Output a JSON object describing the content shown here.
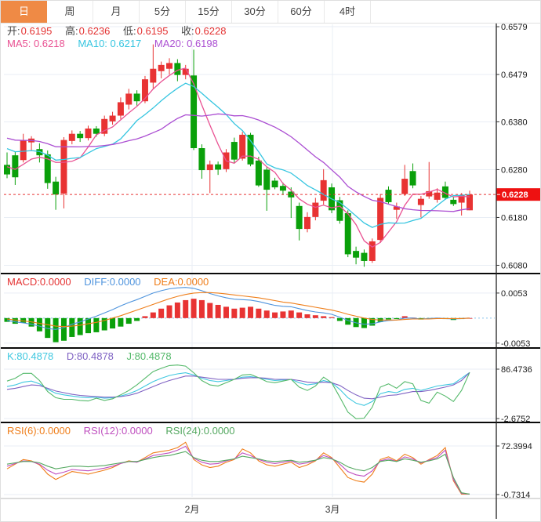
{
  "tabs": {
    "items": [
      {
        "label": "日",
        "active": true
      },
      {
        "label": "周",
        "active": false
      },
      {
        "label": "月",
        "active": false
      },
      {
        "label": "5分",
        "active": false
      },
      {
        "label": "15分",
        "active": false
      },
      {
        "label": "30分",
        "active": false
      },
      {
        "label": "60分",
        "active": false
      },
      {
        "label": "4时",
        "active": false
      }
    ]
  },
  "legends": {
    "ohlc": {
      "open_label": "开:",
      "open": "0.6195",
      "high_label": "高:",
      "high": "0.6236",
      "low_label": "低:",
      "low": "0.6195",
      "close_label": "收:",
      "close": "0.6228"
    },
    "ma": {
      "ma5": "MA5: 0.6218",
      "ma10": "MA10: 0.6217",
      "ma20": "MA20: 0.6198"
    },
    "macd": {
      "macd": "MACD:0.0000",
      "diff": "DIFF:0.0000",
      "dea": "DEA:0.0000"
    },
    "kdj": {
      "k": "K:80.4878",
      "d": "D:80.4878",
      "j": "J:80.4878"
    },
    "rsi": {
      "rsi6": "RSI(6):0.0000",
      "rsi12": "RSI(12):0.0000",
      "rsi24": "RSI(24):0.0000"
    }
  },
  "colors": {
    "accent_tab": "#ef8a45",
    "up": "#e83333",
    "down": "#0aa00a",
    "red_text": "#e43333",
    "ma5": "#e95192",
    "ma10": "#35c5e0",
    "ma20": "#ab4ed2",
    "diff": "#4f94dd",
    "dea": "#ef7e1a",
    "k": "#40c8e0",
    "d": "#7f62c3",
    "j": "#54b96a",
    "rsi6": "#ef7e1a",
    "rsi12": "#bf4fbf",
    "rsi24": "#54a860",
    "price_line": "#e83333",
    "tag": "#ee1111",
    "grid": "#e9eef5",
    "zero_dotted": "#86c3ec",
    "axis_text": "#1a1a1a",
    "separator": "#0a0a0a"
  },
  "chart_data": [
    {
      "type": "candlestick",
      "panel": "price",
      "ylim": [
        0.6066,
        0.6584
      ],
      "yticks": [
        {
          "v": 0.6579,
          "label": "0.6579"
        },
        {
          "v": 0.6479,
          "label": "0.6479"
        },
        {
          "v": 0.638,
          "label": "0.6380"
        },
        {
          "v": 0.628,
          "label": "0.6280"
        },
        {
          "v": 0.618,
          "label": "0.6180"
        },
        {
          "v": 0.608,
          "label": "0.6080"
        }
      ],
      "last_price": {
        "v": 0.6228,
        "label": "0.6228"
      },
      "x_ticks": [
        {
          "i": 22.8,
          "label": "2月"
        },
        {
          "i": 40.1,
          "label": "3月"
        }
      ],
      "ma_periods": [
        5,
        10,
        20
      ],
      "ma_seed": {
        "ma5": 0.629,
        "ma10": 0.633,
        "ma20": 0.635
      },
      "candles": [
        [
          0.629,
          0.6316,
          0.6262,
          0.627
        ],
        [
          0.631,
          0.6318,
          0.6248,
          0.6264
        ],
        [
          0.63,
          0.6355,
          0.6295,
          0.6341
        ],
        [
          0.6337,
          0.635,
          0.632,
          0.6345
        ],
        [
          0.6323,
          0.6335,
          0.6295,
          0.631
        ],
        [
          0.6312,
          0.632,
          0.624,
          0.6252
        ],
        [
          0.6255,
          0.6265,
          0.6196,
          0.6228
        ],
        [
          0.623,
          0.6348,
          0.6199,
          0.6342
        ],
        [
          0.634,
          0.6362,
          0.6333,
          0.6355
        ],
        [
          0.6355,
          0.6361,
          0.6338,
          0.6346
        ],
        [
          0.6346,
          0.6372,
          0.6341,
          0.6366
        ],
        [
          0.6366,
          0.6371,
          0.6349,
          0.6355
        ],
        [
          0.6355,
          0.6393,
          0.635,
          0.6386
        ],
        [
          0.6381,
          0.6401,
          0.6374,
          0.6393
        ],
        [
          0.6393,
          0.6431,
          0.6386,
          0.6421
        ],
        [
          0.6416,
          0.6449,
          0.6406,
          0.6439
        ],
        [
          0.6439,
          0.6446,
          0.6414,
          0.6423
        ],
        [
          0.6423,
          0.6476,
          0.6419,
          0.6469
        ],
        [
          0.6462,
          0.6542,
          0.645,
          0.6491
        ],
        [
          0.6486,
          0.6506,
          0.6471,
          0.6499
        ],
        [
          0.6491,
          0.6513,
          0.6479,
          0.6503
        ],
        [
          0.6503,
          0.6511,
          0.6465,
          0.6478
        ],
        [
          0.6478,
          0.6499,
          0.6469,
          0.6491
        ],
        [
          0.6477,
          0.6531,
          0.6321,
          0.6325
        ],
        [
          0.6325,
          0.6333,
          0.6261,
          0.6279
        ],
        [
          0.6279,
          0.6299,
          0.6231,
          0.6291
        ],
        [
          0.6291,
          0.6297,
          0.6269,
          0.628
        ],
        [
          0.6281,
          0.6323,
          0.6275,
          0.6316
        ],
        [
          0.6338,
          0.6347,
          0.6294,
          0.6301
        ],
        [
          0.6303,
          0.6359,
          0.6299,
          0.6353
        ],
        [
          0.6353,
          0.6357,
          0.6287,
          0.6291
        ],
        [
          0.6299,
          0.6307,
          0.6244,
          0.6247
        ],
        [
          0.628,
          0.6285,
          0.6194,
          0.6238
        ],
        [
          0.6257,
          0.6263,
          0.6239,
          0.6243
        ],
        [
          0.6246,
          0.6253,
          0.6227,
          0.6236
        ],
        [
          0.6234,
          0.6243,
          0.6179,
          0.6222
        ],
        [
          0.6204,
          0.6211,
          0.6132,
          0.6156
        ],
        [
          0.6156,
          0.6191,
          0.6149,
          0.6181
        ],
        [
          0.6181,
          0.6221,
          0.6174,
          0.6211
        ],
        [
          0.6215,
          0.6281,
          0.6207,
          0.6258
        ],
        [
          0.6243,
          0.6251,
          0.6189,
          0.6195
        ],
        [
          0.6216,
          0.6223,
          0.6167,
          0.6173
        ],
        [
          0.6189,
          0.6195,
          0.6097,
          0.6103
        ],
        [
          0.611,
          0.6119,
          0.6082,
          0.6096
        ],
        [
          0.6106,
          0.6113,
          0.6077,
          0.6089
        ],
        [
          0.6089,
          0.6136,
          0.6085,
          0.613
        ],
        [
          0.6133,
          0.6229,
          0.6127,
          0.6221
        ],
        [
          0.6238,
          0.6245,
          0.6209,
          0.6212
        ],
        [
          0.6196,
          0.6211,
          0.6177,
          0.6203
        ],
        [
          0.6229,
          0.629,
          0.6225,
          0.6261
        ],
        [
          0.6277,
          0.6293,
          0.6241,
          0.6247
        ],
        [
          0.6206,
          0.6225,
          0.618,
          0.6219
        ],
        [
          0.6224,
          0.6296,
          0.6219,
          0.6235
        ],
        [
          0.6217,
          0.6241,
          0.6211,
          0.6232
        ],
        [
          0.6245,
          0.6255,
          0.6217,
          0.6221
        ],
        [
          0.6217,
          0.6223,
          0.6204,
          0.6208
        ],
        [
          0.6211,
          0.6231,
          0.6184,
          0.6226
        ],
        [
          0.6195,
          0.6236,
          0.6195,
          0.6228
        ]
      ]
    },
    {
      "type": "macd",
      "ylim": [
        -0.006,
        0.0091
      ],
      "yticks": [
        {
          "v": 0.0053,
          "label": "0.0053"
        },
        {
          "v": -0.0053,
          "label": "-0.0053"
        }
      ],
      "hist": [
        -0.0008,
        -0.0012,
        -0.001,
        -0.0018,
        -0.0028,
        -0.0042,
        -0.0051,
        -0.0048,
        -0.004,
        -0.0036,
        -0.0032,
        -0.003,
        -0.0026,
        -0.0022,
        -0.0018,
        -0.0012,
        -0.0006,
        0.0004,
        0.0012,
        0.002,
        0.0027,
        0.0033,
        0.0038,
        0.0041,
        0.0038,
        0.0032,
        0.0028,
        0.0024,
        0.002,
        0.0022,
        0.0024,
        0.002,
        0.0016,
        0.0012,
        0.0014,
        0.0016,
        0.0012,
        0.0008,
        0.0006,
        0.0004,
        0.0002,
        -0.0006,
        -0.0014,
        -0.0019,
        -0.0021,
        -0.0016,
        -0.0008,
        -0.0003,
        -0.0002,
        0.0004,
        0.0001,
        -0.0003,
        -0.0002,
        -0.0001,
        -0.0002,
        -0.0004,
        -0.0002,
        0.0
      ],
      "diff": [
        -0.0005,
        -0.0008,
        -0.001,
        -0.0013,
        -0.0017,
        -0.0022,
        -0.0024,
        -0.002,
        -0.0013,
        -0.0008,
        -0.0002,
        0.0004,
        0.0011,
        0.0018,
        0.0026,
        0.0033,
        0.0039,
        0.0046,
        0.0053,
        0.0058,
        0.0062,
        0.0064,
        0.0065,
        0.0063,
        0.0058,
        0.0052,
        0.0047,
        0.0043,
        0.004,
        0.0039,
        0.0038,
        0.0035,
        0.0031,
        0.0027,
        0.0025,
        0.0024,
        0.002,
        0.0016,
        0.0013,
        0.0011,
        0.0008,
        0.0002,
        -0.0005,
        -0.001,
        -0.0013,
        -0.0012,
        -0.0008,
        -0.0005,
        -0.0004,
        0.0,
        0.0,
        -0.0002,
        -0.0001,
        0.0,
        -0.0001,
        -0.0002,
        -0.0001,
        0.0
      ],
      "dea": [
        -0.0002,
        -0.0004,
        -0.0006,
        -0.0008,
        -0.0011,
        -0.0014,
        -0.0017,
        -0.0018,
        -0.0017,
        -0.0015,
        -0.0012,
        -0.0009,
        -0.0005,
        0.0,
        0.0005,
        0.0011,
        0.0017,
        0.0023,
        0.0029,
        0.0035,
        0.0041,
        0.0046,
        0.005,
        0.0053,
        0.0054,
        0.0054,
        0.0053,
        0.0051,
        0.0049,
        0.0047,
        0.0045,
        0.0043,
        0.004,
        0.0037,
        0.0034,
        0.0032,
        0.0029,
        0.0026,
        0.0023,
        0.002,
        0.0017,
        0.0013,
        0.0008,
        0.0004,
        0.0,
        -0.0003,
        -0.0004,
        -0.0004,
        -0.0004,
        -0.0003,
        -0.0002,
        -0.0002,
        -0.0002,
        -0.0001,
        -0.0001,
        -0.0001,
        -0.0001,
        0.0
      ]
    },
    {
      "type": "line",
      "name": "KDJ",
      "ylim": [
        -6.9,
        120.4
      ],
      "yticks": [
        {
          "v": 86.4736,
          "label": "86.4736"
        },
        {
          "v": -2.6752,
          "label": "-2.6752"
        }
      ],
      "series": [
        {
          "name": "K",
          "values": [
            55,
            58,
            63,
            65,
            60,
            50,
            43,
            40,
            38,
            36,
            35,
            36,
            34,
            35,
            38,
            42,
            48,
            56,
            64,
            70,
            75,
            78,
            80,
            76,
            70,
            66,
            64,
            66,
            68,
            72,
            73,
            71,
            68,
            66,
            67,
            68,
            62,
            58,
            60,
            66,
            62,
            50,
            35,
            25,
            21,
            28,
            42,
            46,
            44,
            50,
            52,
            48,
            52,
            56,
            58,
            60,
            70,
            80.5
          ]
        },
        {
          "name": "D",
          "values": [
            50,
            52,
            55,
            58,
            57,
            52,
            47,
            44,
            41,
            39,
            38,
            37,
            36,
            36,
            37,
            39,
            43,
            49,
            55,
            61,
            66,
            70,
            74,
            74,
            72,
            70,
            68,
            68,
            68,
            70,
            71,
            71,
            70,
            68,
            68,
            68,
            66,
            63,
            62,
            63,
            62,
            57,
            48,
            40,
            34,
            33,
            36,
            39,
            40,
            43,
            46,
            46,
            48,
            51,
            54,
            58,
            66,
            80.5
          ]
        },
        {
          "name": "J",
          "values": [
            65,
            70,
            79,
            79,
            66,
            46,
            35,
            32,
            32,
            30,
            29,
            34,
            30,
            33,
            40,
            48,
            58,
            70,
            82,
            88,
            93,
            94,
            92,
            80,
            66,
            58,
            56,
            62,
            68,
            76,
            77,
            71,
            64,
            62,
            65,
            68,
            54,
            48,
            56,
            72,
            62,
            36,
            9,
            -3,
            -2,
            18,
            54,
            60,
            52,
            64,
            60,
            30,
            25,
            45,
            38,
            28,
            48,
            80.5
          ]
        }
      ]
    },
    {
      "type": "line",
      "name": "RSI",
      "ylim": [
        -4.3,
        104.3
      ],
      "yticks": [
        {
          "v": 72.3994,
          "label": "72.3994"
        },
        {
          "v": -0.7314,
          "label": "-0.7314"
        }
      ],
      "series": [
        {
          "name": "RSI6",
          "values": [
            38,
            45,
            52,
            50,
            44,
            30,
            22,
            28,
            34,
            32,
            30,
            33,
            36,
            40,
            46,
            50,
            48,
            55,
            62,
            64,
            66,
            70,
            78,
            52,
            44,
            40,
            42,
            48,
            52,
            68,
            62,
            50,
            44,
            42,
            45,
            48,
            40,
            44,
            50,
            62,
            55,
            40,
            25,
            20,
            18,
            30,
            52,
            56,
            50,
            60,
            55,
            45,
            52,
            58,
            70,
            20,
            0,
            0
          ]
        },
        {
          "name": "RSI12",
          "values": [
            42,
            46,
            50,
            49,
            45,
            36,
            30,
            33,
            37,
            36,
            35,
            37,
            39,
            42,
            46,
            49,
            48,
            53,
            58,
            60,
            62,
            66,
            72,
            54,
            48,
            45,
            46,
            50,
            53,
            62,
            58,
            52,
            48,
            46,
            48,
            50,
            45,
            47,
            51,
            58,
            54,
            45,
            34,
            29,
            27,
            35,
            50,
            53,
            49,
            56,
            53,
            47,
            51,
            55,
            66,
            22,
            1,
            0
          ]
        },
        {
          "name": "RSI24",
          "values": [
            45,
            47,
            49,
            49,
            47,
            42,
            38,
            40,
            42,
            42,
            41,
            42,
            43,
            45,
            47,
            49,
            49,
            52,
            55,
            57,
            58,
            61,
            64,
            55,
            51,
            49,
            49,
            51,
            53,
            57,
            55,
            53,
            50,
            49,
            50,
            51,
            48,
            49,
            51,
            55,
            53,
            48,
            41,
            37,
            35,
            40,
            49,
            51,
            49,
            53,
            51,
            48,
            50,
            53,
            60,
            25,
            2,
            0
          ]
        }
      ]
    }
  ]
}
